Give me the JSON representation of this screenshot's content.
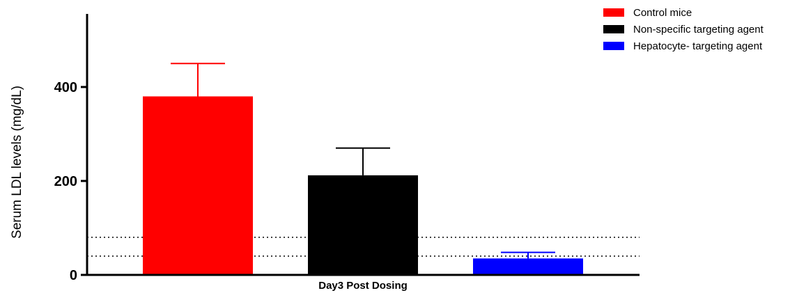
{
  "chart_data": {
    "type": "bar",
    "title": "",
    "xlabel": "",
    "ylabel": "Serum LDL levels (mg/dL)",
    "ylim": [
      0,
      550
    ],
    "yticks": [
      0,
      200,
      400
    ],
    "categories": [
      "Day3 Post Dosing"
    ],
    "series": [
      {
        "name": "Control mice",
        "color": "#ff0000",
        "values": [
          380
        ],
        "error": [
          70
        ]
      },
      {
        "name": "Non-specific targeting agent",
        "color": "#000000",
        "values": [
          212
        ],
        "error": [
          58
        ]
      },
      {
        "name": "Hepatocyte- targeting agent",
        "color": "#0000ff",
        "values": [
          35
        ],
        "error": [
          13
        ]
      }
    ],
    "reference_lines": [
      {
        "value": 80,
        "style": "dotted"
      },
      {
        "value": 40,
        "style": "dotted"
      }
    ],
    "grid": false,
    "legend_position": "top-right"
  }
}
